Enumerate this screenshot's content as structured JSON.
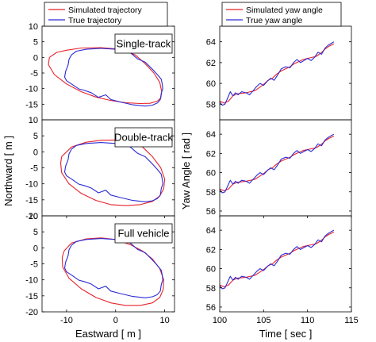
{
  "chart_data": [
    {
      "type": "line",
      "panel": "trajectory",
      "label": "Single-track",
      "xlim": [
        -15,
        12
      ],
      "ylim": [
        -20,
        10
      ],
      "xticks": [],
      "yticks": [
        10,
        5,
        0,
        -5,
        -10,
        -15
      ],
      "ylabel": "",
      "legend": {
        "location": "top",
        "entries": [
          "Simulated trajectory",
          "True trajectory"
        ]
      },
      "series": [
        {
          "name": "Simulated trajectory",
          "color": "#e8222a",
          "x": [
            -13.5,
            -12,
            -10,
            -7,
            -3,
            1,
            4,
            6,
            7.8,
            9,
            9.4,
            9.2,
            8.5,
            7,
            5,
            2,
            -1,
            -4,
            -7,
            -10,
            -12.5,
            -13.7,
            -13.5
          ],
          "y": [
            0,
            1.6,
            2.3,
            3,
            3.1,
            2.6,
            0.8,
            -2,
            -5,
            -8,
            -11,
            -13,
            -14,
            -14.7,
            -14.8,
            -14.5,
            -13.8,
            -12.7,
            -11,
            -8.5,
            -5.5,
            -2.3,
            0
          ]
        },
        {
          "name": "True trajectory",
          "color": "#2b2bd6",
          "x": [
            -9.5,
            -9,
            -8,
            -6,
            -3,
            0,
            1.5,
            3,
            4.5,
            6,
            7.5,
            8.5,
            9.3,
            9.5,
            9.6,
            9.3,
            9.1,
            8.5,
            7.5,
            6,
            3.5,
            1,
            -1,
            -2,
            -3.5,
            -5,
            -6.5,
            -7.5,
            -9,
            -10,
            -10.4,
            -10.2,
            -9.7,
            -9.5
          ],
          "y": [
            -0.6,
            0.8,
            2,
            2.6,
            2.9,
            2.6,
            2.8,
            1.5,
            -0.5,
            -1.5,
            -3.8,
            -5.5,
            -7,
            -8.5,
            -10,
            -11.5,
            -13.5,
            -14.6,
            -15.3,
            -15.6,
            -15.2,
            -14.3,
            -13.5,
            -12,
            -12.8,
            -11.3,
            -10.5,
            -10.1,
            -8.5,
            -7.5,
            -6.3,
            -4.5,
            -2.5,
            -0.6
          ]
        }
      ]
    },
    {
      "type": "line",
      "panel": "trajectory",
      "label": "Double-track",
      "xlim": [
        -15,
        12
      ],
      "ylim": [
        -20,
        10
      ],
      "xticks": [],
      "yticks": [
        10,
        5,
        0,
        -5,
        -10,
        -15,
        -20
      ],
      "ylabel": "Northward [ m ]",
      "series": [
        {
          "name": "Simulated trajectory",
          "color": "#e8222a",
          "x": [
            -11,
            -9,
            -6,
            -3,
            0,
            3,
            5.5,
            7.5,
            9.2,
            10,
            9.8,
            9,
            7.5,
            5,
            2,
            -1,
            -4,
            -7,
            -9.5,
            -11,
            -11.2,
            -11
          ],
          "y": [
            -1.5,
            1.5,
            3,
            3.6,
            3.7,
            3.2,
            1.5,
            -1.5,
            -5,
            -8.5,
            -11.5,
            -13.8,
            -15.5,
            -16.5,
            -16.8,
            -16.5,
            -15.2,
            -13,
            -10,
            -6.5,
            -3.5,
            -1.5
          ]
        },
        {
          "name": "True trajectory",
          "color": "#2b2bd6",
          "x": [
            -9.5,
            -9,
            -8,
            -6,
            -3,
            0,
            1.5,
            3,
            4.5,
            6,
            7.5,
            8.5,
            9.3,
            9.5,
            9.6,
            9.3,
            9.1,
            8.5,
            7.5,
            6,
            3.5,
            1,
            -1,
            -2,
            -3.5,
            -5,
            -6.5,
            -7.5,
            -9,
            -10,
            -10.4,
            -10.2,
            -9.7,
            -9.5
          ],
          "y": [
            -0.6,
            0.8,
            2,
            2.6,
            2.9,
            2.6,
            2.8,
            1.5,
            -0.5,
            -1.5,
            -3.8,
            -5.5,
            -7,
            -8.5,
            -10,
            -11.5,
            -13.5,
            -14.6,
            -15.3,
            -15.6,
            -15.2,
            -14.3,
            -13.5,
            -12,
            -12.8,
            -11.3,
            -10.5,
            -10.1,
            -8.5,
            -7.5,
            -6.3,
            -4.5,
            -2.5,
            -0.6
          ]
        }
      ]
    },
    {
      "type": "line",
      "panel": "trajectory",
      "label": "Full vehicle",
      "xlim": [
        -15,
        12
      ],
      "ylim": [
        -20,
        10
      ],
      "xticks": [
        -10,
        0,
        10
      ],
      "yticks": [
        10,
        5,
        0,
        -5,
        -10,
        -15,
        -20
      ],
      "xlabel": "Eastward [ m ]",
      "series": [
        {
          "name": "Simulated trajectory",
          "color": "#e8222a",
          "x": [
            -10.5,
            -9,
            -6,
            -3,
            0,
            3,
            5.5,
            7.5,
            9,
            9.8,
            9.7,
            9,
            7.5,
            5,
            2,
            -1,
            -4,
            -7,
            -9.5,
            -10.8,
            -10.9,
            -10.5
          ],
          "y": [
            -1,
            1.5,
            2.8,
            3.1,
            2.6,
            1,
            -1,
            -3.5,
            -6.5,
            -10,
            -13,
            -15.5,
            -17.2,
            -18,
            -18,
            -17.2,
            -15.5,
            -12.8,
            -9.5,
            -6,
            -3,
            -1
          ]
        },
        {
          "name": "True trajectory",
          "color": "#2b2bd6",
          "x": [
            -9.5,
            -9,
            -8,
            -6,
            -3,
            0,
            1.5,
            3,
            4.5,
            6,
            7.5,
            8.5,
            9.3,
            9.5,
            9.6,
            9.3,
            9.1,
            8.5,
            7.5,
            6,
            3.5,
            1,
            -1,
            -2,
            -3.5,
            -5,
            -6.5,
            -7.5,
            -9,
            -10,
            -10.4,
            -10.2,
            -9.7,
            -9.5
          ],
          "y": [
            -0.6,
            0.8,
            2,
            2.6,
            2.9,
            2.6,
            2.8,
            1.5,
            -0.5,
            -1.5,
            -3.8,
            -5.5,
            -7,
            -8.5,
            -10,
            -11.5,
            -13.5,
            -14.6,
            -15.3,
            -15.6,
            -15.2,
            -14.3,
            -13.5,
            -12,
            -12.8,
            -11.3,
            -10.5,
            -10.1,
            -8.5,
            -7.5,
            -6.3,
            -4.5,
            -2.5,
            -0.6
          ]
        }
      ]
    },
    {
      "type": "line",
      "panel": "yaw",
      "xlim": [
        100,
        115
      ],
      "ylim": [
        56.5,
        65.5
      ],
      "xticks": [],
      "yticks": [
        58,
        60,
        62,
        64
      ],
      "legend": {
        "location": "top",
        "entries": [
          "Simulated yaw angle",
          "True yaw angle"
        ]
      },
      "series": [
        {
          "name": "Simulated yaw angle",
          "color": "#e8222a",
          "x": [
            100,
            100.5,
            101,
            101.5,
            102,
            103,
            104,
            104.5,
            105,
            105.5,
            106,
            106.5,
            107,
            108,
            108.5,
            109,
            109.5,
            110,
            111,
            111.5,
            112,
            112.5,
            113
          ],
          "y": [
            58.3,
            58.1,
            58.3,
            58.8,
            59.0,
            59.1,
            59.3,
            59.6,
            59.9,
            60.3,
            60.5,
            60.9,
            61.2,
            61.6,
            61.9,
            62.1,
            62.3,
            62.4,
            62.6,
            62.9,
            63.3,
            63.6,
            63.8
          ]
        },
        {
          "name": "True yaw angle",
          "color": "#2b2bd6",
          "x": [
            100,
            100.3,
            100.6,
            100.9,
            101.2,
            101.5,
            101.8,
            102.1,
            102.5,
            103,
            103.4,
            103.8,
            104.2,
            104.6,
            105,
            105.4,
            105.8,
            106.2,
            106.6,
            107,
            107.5,
            108,
            108.4,
            108.8,
            109.2,
            109.6,
            110,
            110.4,
            110.8,
            111.2,
            111.6,
            112,
            112.4,
            112.8,
            113
          ],
          "y": [
            58.2,
            57.9,
            58.0,
            58.6,
            59.2,
            58.8,
            59.1,
            58.9,
            59.2,
            59.1,
            58.9,
            59.3,
            59.7,
            60.0,
            59.8,
            60.2,
            60.5,
            60.3,
            60.8,
            61.4,
            61.6,
            61.5,
            62.0,
            62.3,
            62.0,
            62.2,
            62.4,
            62.2,
            62.5,
            63.0,
            62.8,
            63.4,
            63.7,
            63.9,
            64.0
          ]
        }
      ]
    },
    {
      "type": "line",
      "panel": "yaw",
      "xlim": [
        100,
        115
      ],
      "ylim": [
        55.5,
        65.5
      ],
      "xticks": [],
      "yticks": [
        56,
        58,
        60,
        62,
        64
      ],
      "ylabel": "Yaw Angle [ rad ]",
      "series": [
        {
          "name": "Simulated yaw angle",
          "color": "#e8222a",
          "x": [
            100,
            100.5,
            101,
            101.5,
            102,
            103,
            104,
            104.5,
            105,
            105.5,
            106,
            106.5,
            107,
            108,
            108.5,
            109,
            109.5,
            110,
            111,
            111.5,
            112,
            112.5,
            113
          ],
          "y": [
            58.3,
            58.1,
            58.3,
            58.8,
            59.0,
            59.1,
            59.3,
            59.6,
            59.9,
            60.3,
            60.5,
            60.9,
            61.2,
            61.6,
            61.9,
            62.1,
            62.3,
            62.4,
            62.6,
            62.9,
            63.3,
            63.6,
            63.8
          ]
        },
        {
          "name": "True yaw angle",
          "color": "#2b2bd6",
          "x": [
            100,
            100.3,
            100.6,
            100.9,
            101.2,
            101.5,
            101.8,
            102.1,
            102.5,
            103,
            103.4,
            103.8,
            104.2,
            104.6,
            105,
            105.4,
            105.8,
            106.2,
            106.6,
            107,
            107.5,
            108,
            108.4,
            108.8,
            109.2,
            109.6,
            110,
            110.4,
            110.8,
            111.2,
            111.6,
            112,
            112.4,
            112.8,
            113
          ],
          "y": [
            58.2,
            57.9,
            58.0,
            58.6,
            59.2,
            58.8,
            59.1,
            58.9,
            59.2,
            59.1,
            58.9,
            59.3,
            59.7,
            60.0,
            59.8,
            60.2,
            60.5,
            60.3,
            60.8,
            61.4,
            61.6,
            61.5,
            62.0,
            62.3,
            62.0,
            62.2,
            62.4,
            62.2,
            62.5,
            63.0,
            62.8,
            63.4,
            63.7,
            63.9,
            64.0
          ]
        }
      ]
    },
    {
      "type": "line",
      "panel": "yaw",
      "xlim": [
        100,
        115
      ],
      "ylim": [
        55.5,
        65.5
      ],
      "xticks": [
        100,
        105,
        110,
        115
      ],
      "yticks": [
        56,
        58,
        60,
        62,
        64
      ],
      "xlabel": "Time [ sec ]",
      "series": [
        {
          "name": "Simulated yaw angle",
          "color": "#e8222a",
          "x": [
            100,
            100.5,
            101,
            101.5,
            102,
            103,
            104,
            104.5,
            105,
            105.5,
            106,
            106.5,
            107,
            108,
            108.5,
            109,
            109.5,
            110,
            111,
            111.5,
            112,
            112.5,
            113
          ],
          "y": [
            58.3,
            58.1,
            58.3,
            58.8,
            59.0,
            59.1,
            59.3,
            59.6,
            59.9,
            60.3,
            60.5,
            60.9,
            61.2,
            61.6,
            61.9,
            62.1,
            62.3,
            62.4,
            62.6,
            62.9,
            63.3,
            63.6,
            63.8
          ]
        },
        {
          "name": "True yaw angle",
          "color": "#2b2bd6",
          "x": [
            100,
            100.3,
            100.6,
            100.9,
            101.2,
            101.5,
            101.8,
            102.1,
            102.5,
            103,
            103.4,
            103.8,
            104.2,
            104.6,
            105,
            105.4,
            105.8,
            106.2,
            106.6,
            107,
            107.5,
            108,
            108.4,
            108.8,
            109.2,
            109.6,
            110,
            110.4,
            110.8,
            111.2,
            111.6,
            112,
            112.4,
            112.8,
            113
          ],
          "y": [
            58.2,
            57.9,
            58.0,
            58.6,
            59.2,
            58.8,
            59.1,
            58.9,
            59.2,
            59.1,
            58.9,
            59.3,
            59.7,
            60.0,
            59.8,
            60.2,
            60.5,
            60.3,
            60.8,
            61.4,
            61.6,
            61.5,
            62.0,
            62.3,
            62.0,
            62.2,
            62.4,
            62.2,
            62.5,
            63.0,
            62.8,
            63.4,
            63.7,
            63.9,
            64.0
          ]
        }
      ]
    }
  ]
}
